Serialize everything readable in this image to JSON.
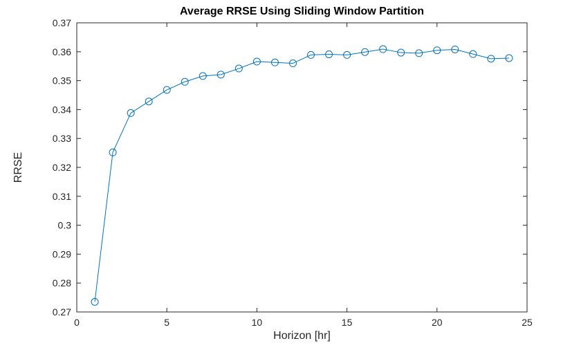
{
  "chart_data": {
    "type": "line",
    "title": "Average RRSE Using Sliding Window Partition",
    "xlabel": "Horizon [hr]",
    "ylabel": "RRSE",
    "xlim": [
      0,
      25
    ],
    "ylim": [
      0.27,
      0.37
    ],
    "xticks": [
      0,
      5,
      10,
      15,
      20,
      25
    ],
    "xtick_labels": [
      "0",
      "5",
      "10",
      "15",
      "20",
      "25"
    ],
    "yticks": [
      0.27,
      0.28,
      0.29,
      0.3,
      0.31,
      0.32,
      0.33,
      0.34,
      0.35,
      0.36,
      0.37
    ],
    "ytick_labels": [
      "0.27",
      "0.28",
      "0.29",
      "0.3",
      "0.31",
      "0.32",
      "0.33",
      "0.34",
      "0.35",
      "0.36",
      "0.37"
    ],
    "x": [
      1,
      2,
      3,
      4,
      5,
      6,
      7,
      8,
      9,
      10,
      11,
      12,
      13,
      14,
      15,
      16,
      17,
      18,
      19,
      20,
      21,
      22,
      23,
      24
    ],
    "y": [
      0.2735,
      0.3252,
      0.3388,
      0.3428,
      0.3468,
      0.3496,
      0.3516,
      0.3521,
      0.3542,
      0.3566,
      0.3563,
      0.356,
      0.3589,
      0.3591,
      0.3589,
      0.3599,
      0.3609,
      0.3597,
      0.3595,
      0.3605,
      0.3608,
      0.3592,
      0.3576,
      0.3578
    ],
    "line_color": "#0072BD",
    "marker": "circle-open",
    "marker_radius": 5,
    "axis_color": "#262626",
    "grid": "off",
    "legend": "none",
    "background": "#FFFFFF"
  }
}
